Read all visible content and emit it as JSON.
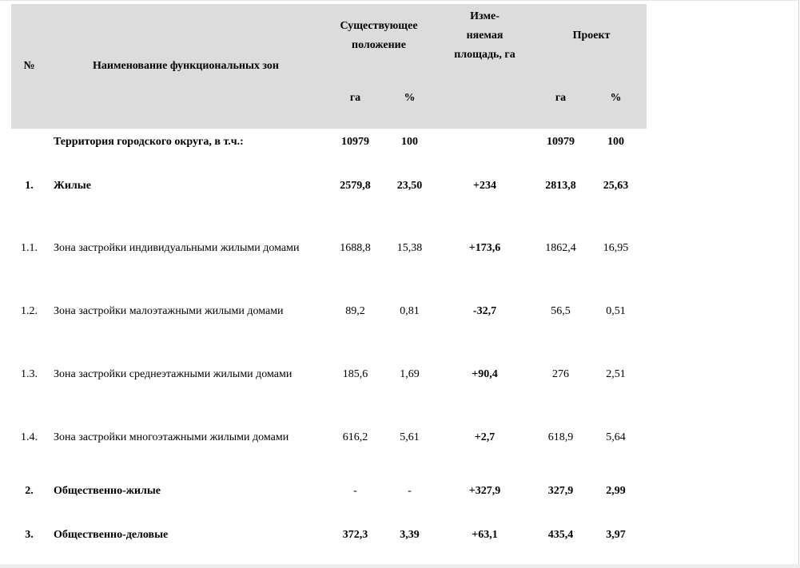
{
  "header": {
    "num": "№",
    "name": "Наименование функциональных зон",
    "existing": [
      "Существующее",
      "положение"
    ],
    "changed": [
      "Изме-",
      "няемая",
      "площадь, га"
    ],
    "project": "Проект",
    "unit_ha": "га",
    "unit_pct": "%"
  },
  "rows": [
    {
      "num": "",
      "name": "Территория городского округа, в т.ч.:",
      "ex_ha": "10979",
      "ex_pct": "100",
      "change": "",
      "pr_ha": "10979",
      "pr_pct": "100"
    },
    {
      "num": "1.",
      "name": "Жилые",
      "ex_ha": "2579,8",
      "ex_pct": "23,50",
      "change": "+234",
      "pr_ha": "2813,8",
      "pr_pct": "25,63"
    },
    {
      "num": "1.1.",
      "name": "Зона застройки индивидуальными жилыми домами",
      "ex_ha": "1688,8",
      "ex_pct": "15,38",
      "change": "+173,6",
      "pr_ha": "1862,4",
      "pr_pct": "16,95"
    },
    {
      "num": "1.2.",
      "name": "Зона застройки малоэтажными жилыми домами",
      "ex_ha": "89,2",
      "ex_pct": "0,81",
      "change": "-32,7",
      "pr_ha": "56,5",
      "pr_pct": "0,51"
    },
    {
      "num": "1.3.",
      "name": "Зона застройки среднеэтажными жилыми домами",
      "ex_ha": "185,6",
      "ex_pct": "1,69",
      "change": "+90,4",
      "pr_ha": "276",
      "pr_pct": "2,51"
    },
    {
      "num": "1.4.",
      "name": "Зона застройки многоэтажными жилыми домами",
      "ex_ha": "616,2",
      "ex_pct": "5,61",
      "change": "+2,7",
      "pr_ha": "618,9",
      "pr_pct": "5,64"
    },
    {
      "num": "2.",
      "name": "Общественно-жилые",
      "ex_ha": "-",
      "ex_pct": "-",
      "change": "+327,9",
      "pr_ha": "327,9",
      "pr_pct": "2,99"
    },
    {
      "num": "3.",
      "name": "Общественно-деловые",
      "ex_ha": "372,3",
      "ex_pct": "3,39",
      "change": "+63,1",
      "pr_ha": "435,4",
      "pr_pct": "3,97"
    }
  ]
}
